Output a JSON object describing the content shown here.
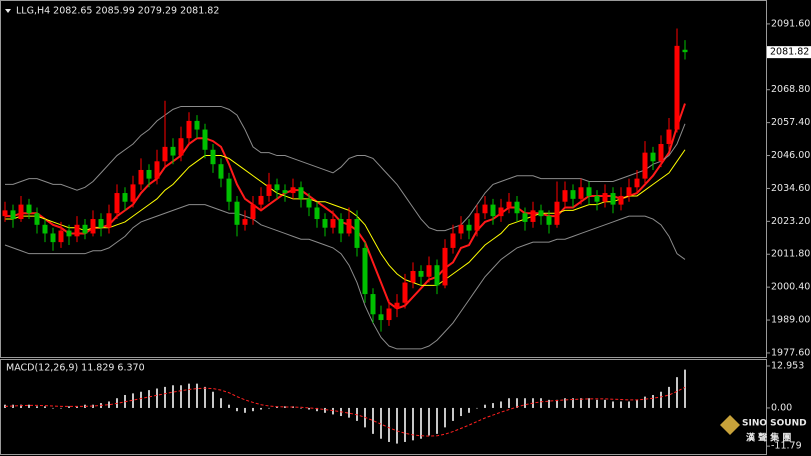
{
  "chart_data": [
    {
      "type": "candlestick",
      "title": "LLG,H4  2082.65 2085.99 2079.29 2081.82",
      "up_color": "#ff0000",
      "down_color": "#00c000",
      "ohlc": [
        [
          2025,
          2030,
          2023,
          2027
        ],
        [
          2027,
          2029,
          2021,
          2024
        ],
        [
          2024,
          2032,
          2023,
          2029
        ],
        [
          2029,
          2031,
          2024,
          2026
        ],
        [
          2026,
          2028,
          2019,
          2022
        ],
        [
          2022,
          2024,
          2016,
          2019
        ],
        [
          2019,
          2021,
          2013,
          2016
        ],
        [
          2016,
          2023,
          2014,
          2020
        ],
        [
          2020,
          2022,
          2015,
          2018
        ],
        [
          2018,
          2025,
          2016,
          2022
        ],
        [
          2022,
          2024,
          2017,
          2019
        ],
        [
          2019,
          2027,
          2018,
          2024
        ],
        [
          2024,
          2026,
          2018,
          2021
        ],
        [
          2021,
          2029,
          2019,
          2026
        ],
        [
          2026,
          2036,
          2024,
          2033
        ],
        [
          2033,
          2035,
          2027,
          2030
        ],
        [
          2030,
          2039,
          2028,
          2036
        ],
        [
          2036,
          2045,
          2034,
          2041
        ],
        [
          2041,
          2043,
          2035,
          2038
        ],
        [
          2038,
          2048,
          2036,
          2044
        ],
        [
          2044,
          2065,
          2042,
          2049
        ],
        [
          2049,
          2052,
          2043,
          2046
        ],
        [
          2046,
          2056,
          2044,
          2052
        ],
        [
          2052,
          2061,
          2050,
          2058
        ],
        [
          2058,
          2060,
          2052,
          2055
        ],
        [
          2055,
          2057,
          2045,
          2048
        ],
        [
          2048,
          2050,
          2040,
          2043
        ],
        [
          2043,
          2045,
          2035,
          2038
        ],
        [
          2038,
          2040,
          2027,
          2030
        ],
        [
          2030,
          2032,
          2018,
          2022
        ],
        [
          2022,
          2027,
          2020,
          2024
        ],
        [
          2024,
          2032,
          2022,
          2029
        ],
        [
          2029,
          2035,
          2027,
          2032
        ],
        [
          2032,
          2040,
          2030,
          2036
        ],
        [
          2036,
          2038,
          2031,
          2034
        ],
        [
          2034,
          2036,
          2030,
          2033
        ],
        [
          2033,
          2038,
          2031,
          2035
        ],
        [
          2035,
          2037,
          2028,
          2031
        ],
        [
          2031,
          2033,
          2025,
          2028
        ],
        [
          2028,
          2030,
          2021,
          2024
        ],
        [
          2024,
          2026,
          2018,
          2021
        ],
        [
          2021,
          2027,
          2019,
          2024
        ],
        [
          2024,
          2026,
          2016,
          2019
        ],
        [
          2019,
          2028,
          2018,
          2024
        ],
        [
          2024,
          2027,
          2011,
          2014
        ],
        [
          2014,
          2016,
          1995,
          1998
        ],
        [
          1998,
          2000,
          1988,
          1991
        ],
        [
          1991,
          1994,
          1985,
          1989
        ],
        [
          1989,
          1996,
          1987,
          1993
        ],
        [
          1993,
          1998,
          1990,
          1995
        ],
        [
          1995,
          2005,
          1993,
          2002
        ],
        [
          2002,
          2009,
          2000,
          2006
        ],
        [
          2006,
          2008,
          2001,
          2004
        ],
        [
          2004,
          2011,
          2002,
          2008
        ],
        [
          2008,
          2010,
          1998,
          2001
        ],
        [
          2001,
          2017,
          2000,
          2014
        ],
        [
          2014,
          2022,
          2012,
          2019
        ],
        [
          2019,
          2025,
          2017,
          2022
        ],
        [
          2022,
          2024,
          2017,
          2020
        ],
        [
          2020,
          2029,
          2018,
          2026
        ],
        [
          2026,
          2032,
          2024,
          2029
        ],
        [
          2029,
          2031,
          2022,
          2025
        ],
        [
          2025,
          2031,
          2023,
          2028
        ],
        [
          2028,
          2033,
          2026,
          2030
        ],
        [
          2030,
          2032,
          2023,
          2026
        ],
        [
          2026,
          2028,
          2020,
          2023
        ],
        [
          2023,
          2030,
          2021,
          2027
        ],
        [
          2027,
          2029,
          2022,
          2025
        ],
        [
          2025,
          2027,
          2019,
          2022
        ],
        [
          2022,
          2037,
          2021,
          2030
        ],
        [
          2030,
          2037,
          2028,
          2034
        ],
        [
          2034,
          2036,
          2028,
          2031
        ],
        [
          2031,
          2038,
          2029,
          2035
        ],
        [
          2035,
          2037,
          2029,
          2032
        ],
        [
          2032,
          2034,
          2027,
          2030
        ],
        [
          2030,
          2036,
          2028,
          2033
        ],
        [
          2033,
          2035,
          2026,
          2029
        ],
        [
          2029,
          2035,
          2027,
          2032
        ],
        [
          2032,
          2038,
          2030,
          2035
        ],
        [
          2035,
          2041,
          2033,
          2038
        ],
        [
          2038,
          2051,
          2036,
          2047
        ],
        [
          2047,
          2049,
          2041,
          2044
        ],
        [
          2044,
          2053,
          2042,
          2050
        ],
        [
          2050,
          2059,
          2048,
          2055
        ],
        [
          2055,
          2090,
          2054,
          2084
        ],
        [
          2082.65,
          2085.99,
          2079.29,
          2081.82
        ]
      ],
      "series": [
        {
          "color": "#ff1a1a",
          "width": 2,
          "values": [
            2025,
            2025,
            2026,
            2026,
            2026,
            2024,
            2022,
            2021,
            2019,
            2019,
            2019,
            2021,
            2021,
            2022,
            2025,
            2027,
            2029,
            2033,
            2036,
            2038,
            2042,
            2044,
            2046,
            2050,
            2052,
            2052,
            2051,
            2049,
            2043,
            2036,
            2031,
            2029,
            2027,
            2029,
            2031,
            2033,
            2034,
            2034,
            2032,
            2030,
            2028,
            2026,
            2023,
            2022,
            2020,
            2016,
            2009,
            2002,
            1995,
            1993,
            1994,
            1997,
            2000,
            2003,
            2004,
            2007,
            2009,
            2014,
            2015,
            2020,
            2023,
            2024,
            2026,
            2028,
            2028,
            2026,
            2026,
            2026,
            2025,
            2025,
            2028,
            2028,
            2030,
            2032,
            2032,
            2032,
            2032,
            2031,
            2032,
            2033,
            2036,
            2039,
            2043,
            2047,
            2056,
            2064
          ]
        },
        {
          "color": "#ffff00",
          "width": 1,
          "values": [
            2024,
            2024,
            2025,
            2025,
            2025,
            2024,
            2023,
            2022,
            2021,
            2021,
            2020,
            2021,
            2021,
            2021,
            2022,
            2023,
            2025,
            2027,
            2029,
            2031,
            2034,
            2036,
            2039,
            2042,
            2044,
            2046,
            2046,
            2046,
            2045,
            2043,
            2041,
            2039,
            2037,
            2035,
            2033,
            2032,
            2031,
            2031,
            2031,
            2030,
            2030,
            2029,
            2028,
            2027,
            2025,
            2022,
            2017,
            2012,
            2008,
            2005,
            2003,
            2002,
            2001,
            2001,
            2001,
            2003,
            2005,
            2007,
            2009,
            2012,
            2015,
            2017,
            2019,
            2022,
            2023,
            2024,
            2025,
            2026,
            2026,
            2026,
            2027,
            2027,
            2028,
            2029,
            2029,
            2030,
            2030,
            2031,
            2032,
            2032,
            2034,
            2036,
            2038,
            2040,
            2044,
            2048
          ]
        },
        {
          "color": "#8c8c8c",
          "width": 1,
          "values": [
            2036,
            2036,
            2037,
            2038,
            2038,
            2037,
            2036,
            2036,
            2035,
            2034,
            2035,
            2037,
            2040,
            2043,
            2046,
            2048,
            2050,
            2053,
            2055,
            2058,
            2060,
            2062,
            2063,
            2063,
            2063,
            2063,
            2063,
            2063,
            2062,
            2060,
            2055,
            2049,
            2047,
            2047,
            2046,
            2046,
            2045,
            2044,
            2043,
            2042,
            2041,
            2040,
            2042,
            2045,
            2046,
            2046,
            2045,
            2042,
            2039,
            2036,
            2032,
            2028,
            2024,
            2021,
            2020,
            2020,
            2021,
            2022,
            2025,
            2029,
            2033,
            2036,
            2037,
            2038,
            2039,
            2039,
            2039,
            2038,
            2038,
            2038,
            2038,
            2038,
            2038,
            2037,
            2037,
            2037,
            2037,
            2038,
            2039,
            2040,
            2041,
            2043,
            2044,
            2046,
            2050,
            2057
          ]
        },
        {
          "color": "#8c8c8c",
          "width": 1,
          "values": [
            2015,
            2014,
            2013,
            2012,
            2012,
            2012,
            2012,
            2012,
            2012,
            2012,
            2012,
            2013,
            2013,
            2014,
            2016,
            2018,
            2021,
            2023,
            2024,
            2025,
            2026,
            2027,
            2028,
            2029,
            2029,
            2029,
            2028,
            2027,
            2026,
            2026,
            2025,
            2024,
            2022,
            2021,
            2020,
            2019,
            2018,
            2017,
            2017,
            2016,
            2015,
            2014,
            2012,
            2008,
            2002,
            1994,
            1988,
            1983,
            1980,
            1979,
            1979,
            1979,
            1979,
            1980,
            1982,
            1985,
            1988,
            1992,
            1996,
            2000,
            2004,
            2007,
            2010,
            2012,
            2014,
            2015,
            2016,
            2016,
            2016,
            2017,
            2017,
            2018,
            2019,
            2020,
            2021,
            2022,
            2023,
            2024,
            2025,
            2025,
            2025,
            2024,
            2022,
            2018,
            2012,
            2010
          ]
        }
      ],
      "ylim": [
        1976.2,
        2098.5
      ],
      "yticks": [
        {
          "value": 2091.6,
          "label": "2091.60"
        },
        {
          "value": 2068.8,
          "label": "2068.80"
        },
        {
          "value": 2057.4,
          "label": "2057.40"
        },
        {
          "value": 2046,
          "label": "2046.00"
        },
        {
          "value": 2034.6,
          "label": "2034.60"
        },
        {
          "value": 2023.2,
          "label": "2023.20"
        },
        {
          "value": 2011.8,
          "label": "2011.80"
        },
        {
          "value": 2000.4,
          "label": "2000.40"
        },
        {
          "value": 1989,
          "label": "1989.00"
        },
        {
          "value": 1977.6,
          "label": "1977.60"
        }
      ],
      "last_price": 2081.82
    },
    {
      "type": "macd",
      "title": "MACD(12,26,9) 11.829 6.370",
      "histogram": {
        "color": "#c8c8c8",
        "values": [
          1,
          1,
          1,
          1,
          0.5,
          0.5,
          0,
          0,
          0.5,
          0.5,
          1,
          1,
          1.5,
          2,
          3,
          4,
          4.5,
          5,
          5.5,
          6,
          6.5,
          7,
          7,
          7.5,
          7.5,
          6.5,
          5,
          3,
          1,
          -1,
          -1.5,
          -1,
          -0.5,
          0,
          0.5,
          0.5,
          0.5,
          0,
          -0.5,
          -1,
          -1.5,
          -2,
          -2.5,
          -3,
          -4,
          -6,
          -8,
          -9.5,
          -10.5,
          -11,
          -10.5,
          -10,
          -9.5,
          -8.5,
          -8,
          -6,
          -4,
          -2.5,
          -1.5,
          0,
          1,
          1.5,
          2,
          3,
          3,
          3,
          3,
          3,
          2.5,
          2.5,
          3,
          3,
          3,
          3,
          2.5,
          2.5,
          2,
          2,
          2,
          2.5,
          3.5,
          4,
          5,
          6.5,
          9.5,
          11.829
        ]
      },
      "signal": {
        "color": "#ff2020",
        "values": [
          0.5,
          0.6,
          0.7,
          0.8,
          0.8,
          0.7,
          0.6,
          0.5,
          0.5,
          0.5,
          0.5,
          0.6,
          0.8,
          1,
          1.4,
          1.9,
          2.4,
          2.9,
          3.4,
          3.9,
          4.4,
          4.9,
          5.3,
          5.7,
          6,
          6.1,
          6,
          5.5,
          4.7,
          3.5,
          2.5,
          1.7,
          1,
          0.6,
          0.4,
          0.3,
          0.3,
          0.2,
          0,
          -0.2,
          -0.5,
          -0.8,
          -1.2,
          -1.6,
          -2.1,
          -2.9,
          -3.9,
          -5,
          -6.1,
          -7.1,
          -7.8,
          -8.3,
          -8.6,
          -8.7,
          -8.6,
          -8.1,
          -7.3,
          -6.3,
          -5.3,
          -4.2,
          -3.1,
          -2.2,
          -1.3,
          -0.5,
          0.3,
          1,
          1.5,
          1.9,
          2.1,
          2.3,
          2.5,
          2.6,
          2.7,
          2.8,
          2.8,
          2.8,
          2.7,
          2.6,
          2.5,
          2.5,
          2.7,
          3,
          3.4,
          4,
          5.1,
          6.37
        ]
      },
      "ylim": [
        -13.6,
        14.8
      ],
      "yticks": [
        12.953,
        {
          "value": 0,
          "label": "0.00"
        },
        {
          "value": -11.79,
          "label": "-11.79"
        }
      ]
    }
  ],
  "logo": {
    "text": "SINO SOUND",
    "subtext": "漢 聲 集 團"
  }
}
